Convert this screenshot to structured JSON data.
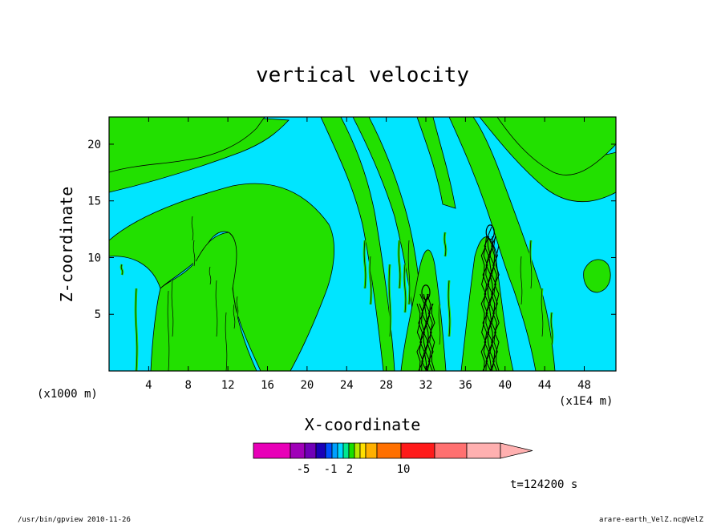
{
  "chart_data": {
    "type": "heatmap",
    "title": "vertical velocity",
    "xlabel": "X-coordinate",
    "ylabel": "Z-coordinate",
    "x_units_left": "(x1000 m)",
    "x_units_right": "(x1E4 m)",
    "x_ticks": [
      "4",
      "8",
      "12",
      "16",
      "20",
      "24",
      "28",
      "32",
      "36",
      "40",
      "44",
      "48"
    ],
    "y_ticks": [
      "5",
      "10",
      "15",
      "20"
    ],
    "xlim": [
      0,
      51.2
    ],
    "ylim": [
      0,
      22.4
    ],
    "colors": {
      "negative": "#00e5ff",
      "weak_positive": "#22e000",
      "contour": "#000000"
    },
    "strong_updraft_columns": [
      {
        "x": 32.0,
        "z_top": 7.5
      },
      {
        "x": 38.5,
        "z_top": 12.8
      }
    ],
    "colorbar": {
      "colors": [
        "#e800b8",
        "#a000b8",
        "#7000b8",
        "#1a00b8",
        "#0050ff",
        "#00a0ff",
        "#00d8ff",
        "#00e890",
        "#18e000",
        "#b8e800",
        "#ffe000",
        "#ffb000",
        "#ff7000",
        "#ff1a1a",
        "#ff7070",
        "#ffb0b0"
      ],
      "tick_labels": [
        "-5",
        "-1",
        "2",
        "10"
      ]
    },
    "time_label": "t=124200 s"
  },
  "footer": {
    "left": "/usr/bin/gpview  2010-11-26",
    "right": "arare-earth_VelZ.nc@VelZ"
  }
}
